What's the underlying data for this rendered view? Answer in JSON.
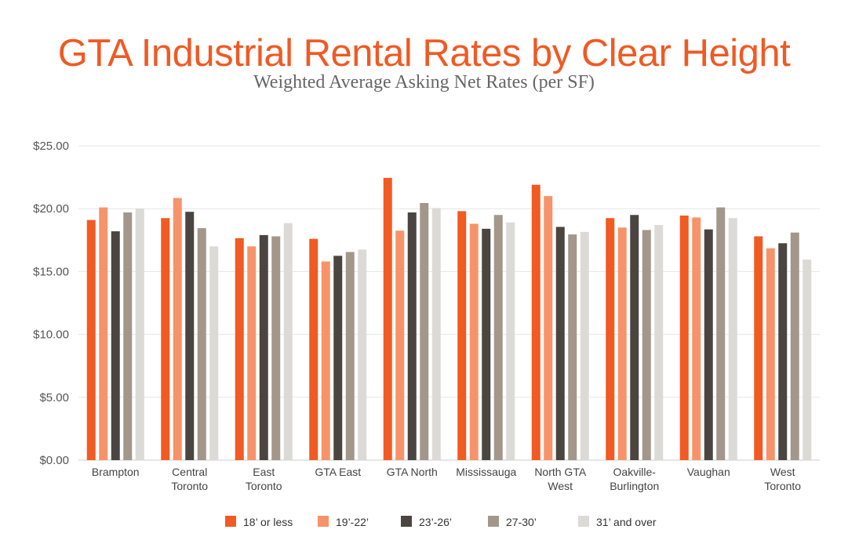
{
  "chart_data": {
    "type": "bar",
    "title": "GTA Industrial Rental Rates by Clear Height",
    "subtitle": "Weighted Average Asking Net Rates (per SF)",
    "xlabel": "",
    "ylabel": "",
    "ylim": [
      0,
      25
    ],
    "yticks": [
      0,
      5,
      10,
      15,
      20,
      25
    ],
    "ytick_labels": [
      "$0.00",
      "$5.00",
      "$10.00",
      "$15.00",
      "$20.00",
      "$25.00"
    ],
    "grid": true,
    "legend_position": "bottom",
    "categories": [
      [
        "Brampton"
      ],
      [
        "Central",
        "Toronto"
      ],
      [
        "East",
        "Toronto"
      ],
      [
        "GTA East"
      ],
      [
        "GTA North"
      ],
      [
        "Mississauga"
      ],
      [
        "North GTA",
        "West"
      ],
      [
        "Oakville-",
        "Burlington"
      ],
      [
        "Vaughan"
      ],
      [
        "West",
        "Toronto"
      ]
    ],
    "series": [
      {
        "name": "18’ or less",
        "color": "#f15a22",
        "values": [
          19.1,
          19.25,
          17.65,
          17.6,
          22.45,
          19.8,
          21.9,
          19.25,
          19.45,
          17.8
        ]
      },
      {
        "name": "19’-22’",
        "color": "#f7936a",
        "values": [
          20.1,
          20.85,
          17.0,
          15.8,
          18.25,
          18.8,
          21.0,
          18.5,
          19.3,
          16.85
        ]
      },
      {
        "name": "23’-26’",
        "color": "#4a4540",
        "values": [
          18.2,
          19.75,
          17.9,
          16.25,
          19.7,
          18.4,
          18.55,
          19.5,
          18.35,
          17.25
        ]
      },
      {
        "name": "27-30’",
        "color": "#a2978a",
        "values": [
          19.7,
          18.45,
          17.8,
          16.55,
          20.45,
          19.5,
          17.95,
          18.3,
          20.1,
          18.1
        ]
      },
      {
        "name": "31’ and over",
        "color": "#dcdad6",
        "values": [
          20.0,
          17.0,
          18.85,
          16.75,
          20.05,
          18.9,
          18.15,
          18.7,
          19.25,
          15.95
        ]
      }
    ]
  }
}
